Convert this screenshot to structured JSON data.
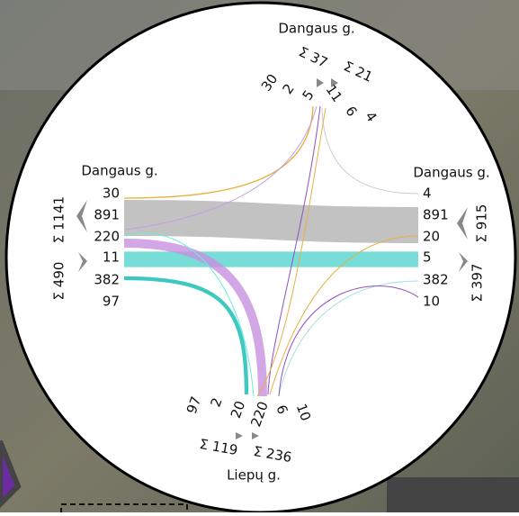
{
  "roads": {
    "west": {
      "name": "Dangaus g.",
      "values": [
        30,
        891,
        220,
        11,
        382,
        97
      ],
      "total_out": "Σ 1141",
      "total_in": "Σ 490"
    },
    "east": {
      "name": "Dangaus g.",
      "values": [
        4,
        891,
        20,
        5,
        382,
        10
      ],
      "total_out": "Σ 915",
      "total_in": "Σ 397"
    },
    "north": {
      "name": "Dangaus g.",
      "values": [
        30,
        2,
        5,
        11,
        6,
        4
      ],
      "total_out": "Σ 37",
      "total_in": "Σ 21"
    },
    "south": {
      "name": "Liepų g.",
      "values": [
        97,
        2,
        20,
        220,
        6,
        10
      ],
      "total_out": "Σ 119",
      "total_in": "Σ 236"
    }
  }
}
